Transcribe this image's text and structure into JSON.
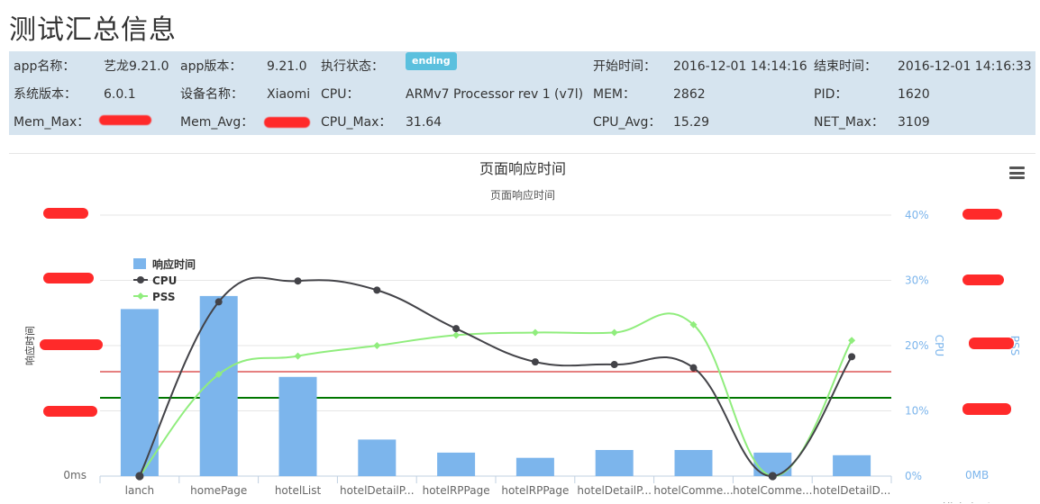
{
  "page": {
    "title": "测试汇总信息"
  },
  "info": {
    "row1": {
      "app_name_label": "app名称：",
      "app_name": "艺龙9.21.0",
      "app_version_label": "app版本：",
      "app_version": "9.21.0",
      "status_label": "执行状态：",
      "status": "ending",
      "start_label": "开始时间：",
      "start": "2016-12-01 14:14:16",
      "end_label": "结束时间：",
      "end": "2016-12-01 14:16:33"
    },
    "row2": {
      "sys_label": "系统版本：",
      "sys": "6.0.1",
      "device_label": "设备名称：",
      "device": "Xiaomi",
      "cpu_label": "CPU：",
      "cpu": "ARMv7 Processor rev 1 (v7l)",
      "mem_label": "MEM：",
      "mem": "2862",
      "pid_label": "PID：",
      "pid": "1620"
    },
    "row3": {
      "mem_max_label": "Mem_Max：",
      "mem_avg_label": "Mem_Avg：",
      "cpu_max_label": "CPU_Max：",
      "cpu_max": "31.64",
      "cpu_avg_label": "CPU_Avg：",
      "cpu_avg": "15.29",
      "net_max_label": "NET_Max：",
      "net_max": "3109"
    }
  },
  "chart_data": {
    "type": "bar",
    "title": "页面响应时间",
    "subtitle": "页面响应时间",
    "categories": [
      "lanch",
      "homePage",
      "hotelList",
      "hotelDetailP...",
      "hotelRPPage",
      "hotelRPPage",
      "hotelDetailP...",
      "hotelComme...",
      "hotelComme...",
      "hotelDetailD..."
    ],
    "series": [
      {
        "name": "响应时间",
        "type": "bar",
        "axis": "left",
        "color": "#7cb5ec",
        "values": [
          0.64,
          0.69,
          0.38,
          0.14,
          0.09,
          0.07,
          0.1,
          0.1,
          0.09,
          0.08
        ]
      },
      {
        "name": "CPU",
        "type": "spline",
        "axis": "cpu",
        "color": "#434348",
        "values": [
          0,
          26.7,
          29.9,
          28.5,
          22.6,
          17.5,
          17.1,
          16.6,
          0,
          18.3
        ]
      },
      {
        "name": "PSS",
        "type": "spline",
        "axis": "pss",
        "color": "#90ed7d",
        "values": [
          0,
          0.39,
          0.46,
          0.5,
          0.54,
          0.55,
          0.55,
          0.58,
          0,
          0.52
        ]
      }
    ],
    "left_axis": {
      "label": "响应时间",
      "bottom_tick": "0ms",
      "range": [
        0,
        1
      ]
    },
    "cpu_axis": {
      "label": "CPU",
      "ticks": [
        "0%",
        "10%",
        "20%",
        "30%",
        "40%"
      ],
      "range": [
        0,
        40
      ]
    },
    "pss_axis": {
      "label": "PSS",
      "bottom_tick": "0MB",
      "range": [
        0,
        1
      ]
    },
    "plot_lines": [
      {
        "color": "#cc0000",
        "value": 0.4
      },
      {
        "color": "#007700",
        "value": 0.3
      }
    ],
    "credits": "Highcharts",
    "legend": "top-left",
    "grid": true
  }
}
